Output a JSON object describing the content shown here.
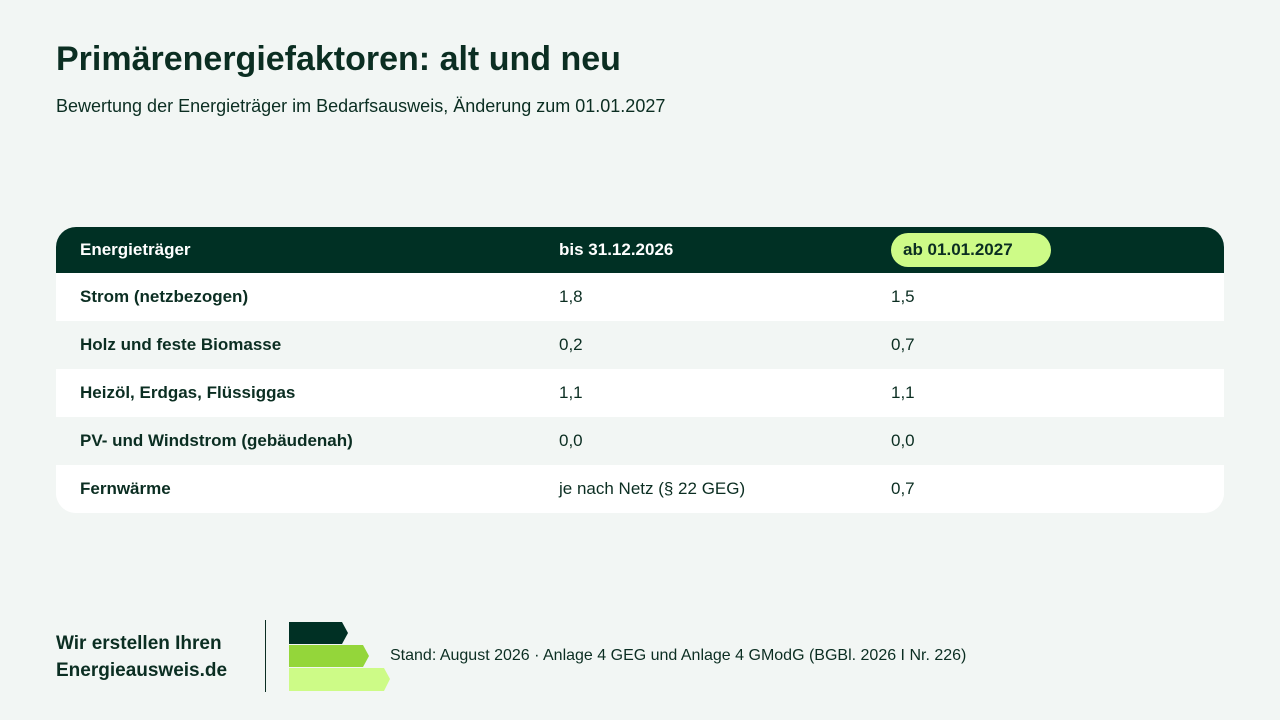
{
  "header": {
    "title": "Primärenergiefaktoren: alt und neu",
    "subtitle": "Bewertung der Energieträger im Bedarfsausweis, Änderung zum 01.01.2027"
  },
  "table": {
    "columns": [
      "Energieträger",
      "bis 31.12.2026",
      "ab 01.01.2027"
    ],
    "rows": [
      [
        "Strom (netzbezogen)",
        "1,8",
        "1,5"
      ],
      [
        "Holz und feste Biomasse",
        "0,2",
        "0,7"
      ],
      [
        "Heizöl, Erdgas, Flüssiggas",
        "1,1",
        "1,1"
      ],
      [
        "PV- und Windstrom (gebäudenah)",
        "0,0",
        "0,0"
      ],
      [
        "Fernwärme",
        "je nach Netz (§ 22 GEG)",
        "0,7"
      ]
    ]
  },
  "footer": {
    "brand_line1": "Wir erstellen Ihren",
    "brand_line2": "Energieausweis.de",
    "logo_icon": "energy-efficiency-arrows-icon",
    "stand": "Stand: August 2026 · Anlage 4 GEG und Anlage 4 GModG (BGBl. 2026 I Nr. 226)"
  },
  "colors": {
    "dark_green": "#003024",
    "mid_green": "#94d63a",
    "light_green": "#cdfb87",
    "background": "#f2f6f4"
  }
}
